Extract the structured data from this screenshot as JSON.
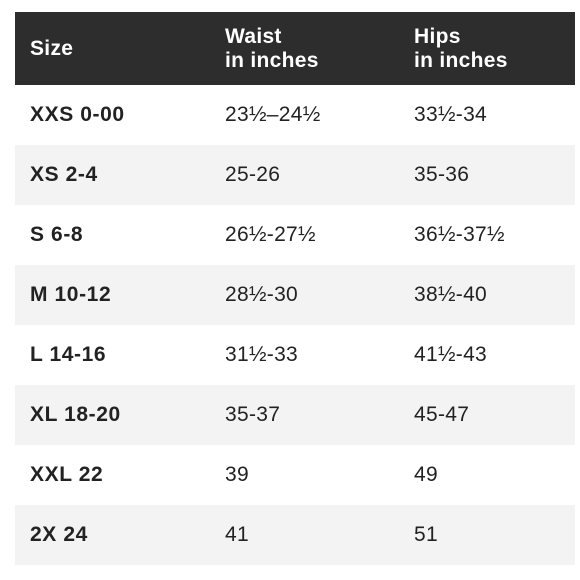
{
  "header": {
    "size": "Size",
    "waist_line1": "Waist",
    "waist_line2": "in inches",
    "hips_line1": "Hips",
    "hips_line2": "in inches"
  },
  "rows": [
    {
      "size": "XXS 0-00",
      "waist": "23½–24½",
      "hips": "33½-34"
    },
    {
      "size": "XS 2-4",
      "waist": "25-26",
      "hips": "35-36"
    },
    {
      "size": "S 6-8",
      "waist": "26½-27½",
      "hips": "36½-37½"
    },
    {
      "size": "M 10-12",
      "waist": "28½-30",
      "hips": "38½-40"
    },
    {
      "size": "L 14-16",
      "waist": "31½-33",
      "hips": "41½-43"
    },
    {
      "size": "XL 18-20",
      "waist": "35-37",
      "hips": "45-47"
    },
    {
      "size": "XXL 22",
      "waist": "39",
      "hips": "49"
    },
    {
      "size": "2X 24",
      "waist": "41",
      "hips": "51"
    }
  ],
  "colors": {
    "header_bg": "#2d2d2d",
    "header_text": "#ffffff",
    "alt_row_bg": "#f3f3f3",
    "text": "#222222"
  }
}
